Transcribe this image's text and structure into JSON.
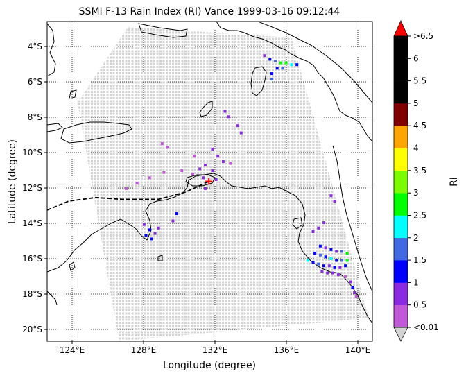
{
  "title": "SSMI F-13 Rain Index (RI) Vance 1999-03-16 09:12:44",
  "xlabel": "Longitude (degree)",
  "ylabel": "Latitude (degree)",
  "colorbar_label": "RI",
  "x_ticks": [
    "124°E",
    "128°E",
    "132°E",
    "136°E",
    "140°E"
  ],
  "y_ticks": [
    "4°S",
    "6°S",
    "8°S",
    "10°S",
    "12°S",
    "14°S",
    "16°S",
    "18°S",
    "20°S"
  ],
  "colorbar_ticks": [
    "<0.01",
    "0.5",
    "1",
    "1.5",
    "2",
    "2.5",
    "3",
    "3.5",
    "4",
    "4.5",
    "5",
    "5.5",
    "6",
    ">6.5"
  ],
  "colorbar_colors": [
    "#c058d8",
    "#8a2be2",
    "#0000ff",
    "#4169e1",
    "#00ffff",
    "#00ff00",
    "#7cfc00",
    "#ffff00",
    "#ffa500",
    "#800000",
    "#000000",
    "#000000",
    "#000000"
  ],
  "colorbar_over_color": "#ff0000",
  "colorbar_under_color": "#d3d3d3",
  "swath_color": "#d3d3d3",
  "storm_marker_color": "#ff0000",
  "chart_data": {
    "type": "map",
    "title": "SSMI F-13 Rain Index (RI) Vance 1999-03-16 09:12:44",
    "xlabel": "Longitude (degree)",
    "ylabel": "Latitude (degree)",
    "xlim": [
      122.8,
      140.9
    ],
    "ylim": [
      -20.5,
      -2.7
    ],
    "grid": true,
    "colorbar": {
      "label": "RI",
      "boundaries": [
        0.01,
        0.5,
        1,
        1.5,
        2,
        2.5,
        3,
        3.5,
        4,
        4.5,
        5,
        5.5,
        6,
        6.5
      ],
      "extend": "both"
    },
    "storm_center": {
      "lon": 131.8,
      "lat": -11.6
    },
    "storm_track": [
      {
        "lon": 122.8,
        "lat": -13.2
      },
      {
        "lon": 124.0,
        "lat": -12.7
      },
      {
        "lon": 125.5,
        "lat": -12.5
      },
      {
        "lon": 127.0,
        "lat": -12.6
      },
      {
        "lon": 129.0,
        "lat": -12.6
      },
      {
        "lon": 130.5,
        "lat": -12.2
      },
      {
        "lon": 131.8,
        "lat": -11.6
      }
    ],
    "swath_corners": [
      {
        "lon": 127.3,
        "lat": -3.0
      },
      {
        "lon": 136.4,
        "lat": -3.6
      },
      {
        "lon": 140.7,
        "lat": -19.2
      },
      {
        "lon": 126.8,
        "lat": -20.5
      },
      {
        "lon": 124.5,
        "lat": -7.2
      }
    ],
    "rain_points": [
      {
        "lon": 134.9,
        "lat": -4.6,
        "ri": 0.5
      },
      {
        "lon": 135.2,
        "lat": -4.8,
        "ri": 1.0
      },
      {
        "lon": 135.5,
        "lat": -4.9,
        "ri": 1.5
      },
      {
        "lon": 135.8,
        "lat": -5.0,
        "ri": 2.5
      },
      {
        "lon": 136.1,
        "lat": -5.0,
        "ri": 2.5
      },
      {
        "lon": 136.4,
        "lat": -5.1,
        "ri": 2.0
      },
      {
        "lon": 136.7,
        "lat": -5.1,
        "ri": 1.0
      },
      {
        "lon": 135.6,
        "lat": -5.3,
        "ri": 1.0
      },
      {
        "lon": 135.9,
        "lat": -5.3,
        "ri": 1.5
      },
      {
        "lon": 135.3,
        "lat": -5.6,
        "ri": 1.0
      },
      {
        "lon": 135.3,
        "lat": -5.9,
        "ri": 1.5
      },
      {
        "lon": 132.7,
        "lat": -7.7,
        "ri": 0.5
      },
      {
        "lon": 132.9,
        "lat": -8.0,
        "ri": 0.5
      },
      {
        "lon": 133.4,
        "lat": -8.5,
        "ri": 0.5
      },
      {
        "lon": 133.6,
        "lat": -8.9,
        "ri": 0.5
      },
      {
        "lon": 129.2,
        "lat": -9.5,
        "ri": 0.01
      },
      {
        "lon": 129.5,
        "lat": -9.7,
        "ri": 0.01
      },
      {
        "lon": 131.0,
        "lat": -10.2,
        "ri": 0.01
      },
      {
        "lon": 132.0,
        "lat": -9.8,
        "ri": 0.5
      },
      {
        "lon": 132.3,
        "lat": -10.2,
        "ri": 0.5
      },
      {
        "lon": 132.6,
        "lat": -10.5,
        "ri": 0.5
      },
      {
        "lon": 131.6,
        "lat": -10.7,
        "ri": 0.5
      },
      {
        "lon": 131.3,
        "lat": -10.9,
        "ri": 0.5
      },
      {
        "lon": 132.0,
        "lat": -11.0,
        "ri": 0.5
      },
      {
        "lon": 133.0,
        "lat": -10.6,
        "ri": 0.01
      },
      {
        "lon": 130.9,
        "lat": -11.2,
        "ri": 0.01
      },
      {
        "lon": 131.5,
        "lat": -11.4,
        "ri": 0.5
      },
      {
        "lon": 132.2,
        "lat": -11.5,
        "ri": 0.5
      },
      {
        "lon": 128.5,
        "lat": -11.4,
        "ri": 0.01
      },
      {
        "lon": 127.8,
        "lat": -11.7,
        "ri": 0.01
      },
      {
        "lon": 127.2,
        "lat": -12.0,
        "ri": 0.01
      },
      {
        "lon": 130.3,
        "lat": -11.0,
        "ri": 0.01
      },
      {
        "lon": 129.3,
        "lat": -11.1,
        "ri": 0.01
      },
      {
        "lon": 131.6,
        "lat": -12.0,
        "ri": 0.5
      },
      {
        "lon": 130.0,
        "lat": -13.4,
        "ri": 1.0
      },
      {
        "lon": 129.8,
        "lat": -13.8,
        "ri": 0.5
      },
      {
        "lon": 128.2,
        "lat": -14.0,
        "ri": 0.5
      },
      {
        "lon": 128.5,
        "lat": -14.3,
        "ri": 1.0
      },
      {
        "lon": 128.8,
        "lat": -14.5,
        "ri": 0.5
      },
      {
        "lon": 128.3,
        "lat": -14.6,
        "ri": 1.0
      },
      {
        "lon": 128.6,
        "lat": -14.8,
        "ri": 1.0
      },
      {
        "lon": 129.0,
        "lat": -14.2,
        "ri": 0.5
      },
      {
        "lon": 138.6,
        "lat": -12.4,
        "ri": 0.5
      },
      {
        "lon": 138.8,
        "lat": -12.7,
        "ri": 0.5
      },
      {
        "lon": 138.2,
        "lat": -13.9,
        "ri": 0.5
      },
      {
        "lon": 137.9,
        "lat": -14.2,
        "ri": 0.5
      },
      {
        "lon": 137.6,
        "lat": -14.4,
        "ri": 0.5
      },
      {
        "lon": 138.0,
        "lat": -15.2,
        "ri": 1.0
      },
      {
        "lon": 138.3,
        "lat": -15.3,
        "ri": 0.5
      },
      {
        "lon": 138.6,
        "lat": -15.4,
        "ri": 1.0
      },
      {
        "lon": 138.9,
        "lat": -15.5,
        "ri": 0.5
      },
      {
        "lon": 139.2,
        "lat": -15.5,
        "ri": 1.5
      },
      {
        "lon": 139.5,
        "lat": -15.6,
        "ri": 2.5
      },
      {
        "lon": 137.7,
        "lat": -15.6,
        "ri": 1.0
      },
      {
        "lon": 138.0,
        "lat": -15.7,
        "ri": 1.5
      },
      {
        "lon": 138.3,
        "lat": -15.8,
        "ri": 1.0
      },
      {
        "lon": 138.6,
        "lat": -15.9,
        "ri": 2.0
      },
      {
        "lon": 138.9,
        "lat": -16.0,
        "ri": 1.0
      },
      {
        "lon": 139.2,
        "lat": -16.0,
        "ri": 1.5
      },
      {
        "lon": 139.5,
        "lat": -16.0,
        "ri": 2.5
      },
      {
        "lon": 137.3,
        "lat": -16.0,
        "ri": 2.0
      },
      {
        "lon": 137.6,
        "lat": -16.1,
        "ri": 1.0
      },
      {
        "lon": 137.9,
        "lat": -16.2,
        "ri": 1.5
      },
      {
        "lon": 138.2,
        "lat": -16.3,
        "ri": 1.0
      },
      {
        "lon": 138.5,
        "lat": -16.3,
        "ri": 0.5
      },
      {
        "lon": 138.8,
        "lat": -16.4,
        "ri": 1.0
      },
      {
        "lon": 139.1,
        "lat": -16.4,
        "ri": 0.5
      },
      {
        "lon": 139.4,
        "lat": -16.3,
        "ri": 1.0
      },
      {
        "lon": 138.1,
        "lat": -16.6,
        "ri": 0.5
      },
      {
        "lon": 138.4,
        "lat": -16.7,
        "ri": 0.5
      },
      {
        "lon": 138.7,
        "lat": -16.7,
        "ri": 0.5
      },
      {
        "lon": 139.0,
        "lat": -16.8,
        "ri": 0.5
      },
      {
        "lon": 139.4,
        "lat": -16.9,
        "ri": 0.01
      },
      {
        "lon": 139.7,
        "lat": -17.2,
        "ri": 0.5
      },
      {
        "lon": 139.8,
        "lat": -17.5,
        "ri": 1.0
      },
      {
        "lon": 139.9,
        "lat": -17.8,
        "ri": 0.5
      },
      {
        "lon": 140.0,
        "lat": -18.0,
        "ri": 0.01
      }
    ]
  }
}
